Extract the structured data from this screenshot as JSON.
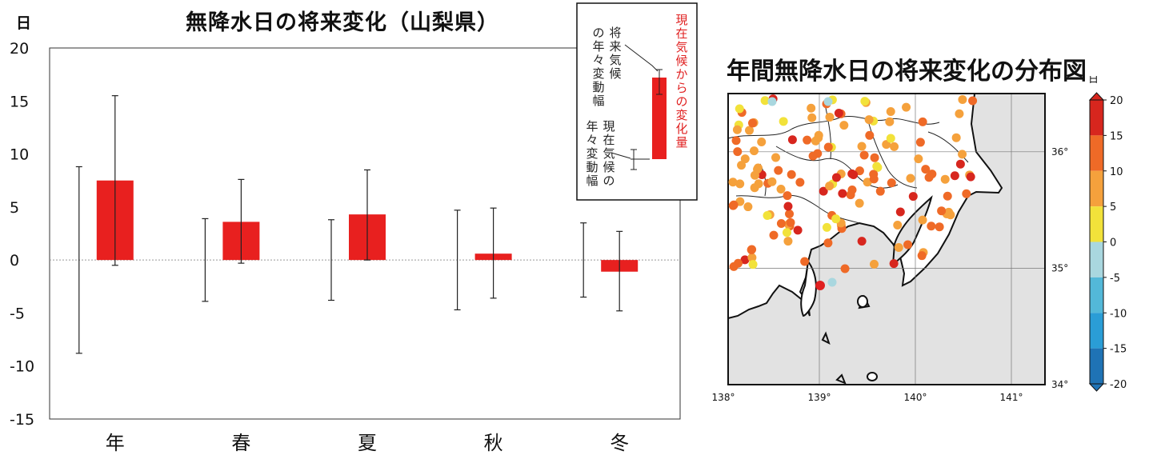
{
  "chart_data": [
    {
      "type": "bar",
      "title": "無降水日の将来変化（山梨県）",
      "ylabel": "日",
      "ylim": [
        -15,
        20
      ],
      "yticks": [
        20,
        15,
        10,
        5,
        0,
        -5,
        -10,
        -15
      ],
      "categories": [
        "年",
        "春",
        "夏",
        "秋",
        "冬"
      ],
      "values": [
        7.5,
        3.6,
        4.3,
        0.6,
        -1.1
      ],
      "change_error_range": [
        [
          -0.5,
          15.5
        ],
        [
          -0.3,
          7.6
        ],
        [
          0.0,
          8.5
        ],
        [
          -3.6,
          4.9
        ],
        [
          -4.8,
          2.7
        ]
      ],
      "present_interannual_range": [
        [
          -8.8,
          8.8
        ],
        [
          -3.9,
          3.9
        ],
        [
          -3.8,
          3.8
        ],
        [
          -4.7,
          4.7
        ],
        [
          -3.5,
          3.5
        ]
      ],
      "bar_color": "#e8201f",
      "legend": {
        "left_upper": "将来気候の年々変動幅",
        "left_lower": "現在気候の年々変動幅",
        "right": "現在気候からの変化量",
        "placement": "top-right"
      }
    },
    {
      "type": "scatter",
      "title": "年間無降水日の将来変化の分布図",
      "colorbar_unit": "日",
      "colorbar_ticks": [
        20,
        15,
        10,
        5,
        0,
        -5,
        -10,
        -15,
        -20
      ],
      "colorbar_colors": [
        "#d7261e",
        "#ef6a27",
        "#f5a13c",
        "#f2e23a",
        "#a9d7df",
        "#53b8d8",
        "#2a9dd6",
        "#1f73b5"
      ],
      "xlabels": [
        "138°",
        "139°",
        "140°",
        "141°"
      ],
      "ylabels": [
        "36°",
        "35°",
        "34°"
      ],
      "xlim": [
        138,
        141.3
      ],
      "ylim": [
        34,
        36.5
      ]
    }
  ]
}
